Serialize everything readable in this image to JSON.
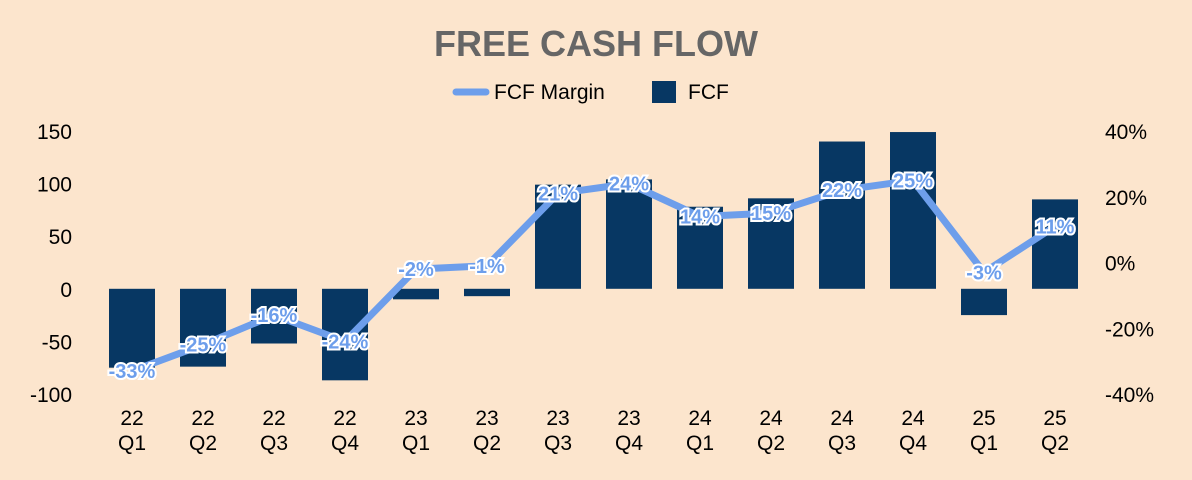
{
  "chart_data": {
    "type": "bar+line",
    "title": "FREE CASH FLOW",
    "categories": [
      [
        "22",
        "Q1"
      ],
      [
        "22",
        "Q2"
      ],
      [
        "22",
        "Q3"
      ],
      [
        "22",
        "Q4"
      ],
      [
        "23",
        "Q1"
      ],
      [
        "23",
        "Q2"
      ],
      [
        "23",
        "Q3"
      ],
      [
        "23",
        "Q4"
      ],
      [
        "24",
        "Q1"
      ],
      [
        "24",
        "Q2"
      ],
      [
        "24",
        "Q3"
      ],
      [
        "24",
        "Q4"
      ],
      [
        "25",
        "Q1"
      ],
      [
        "25",
        "Q2"
      ]
    ],
    "series": [
      {
        "name": "FCF",
        "type": "bar",
        "axis": "left",
        "color": "#073763",
        "values": [
          -75,
          -74,
          -52,
          -87,
          -10,
          -7,
          99,
          104,
          78,
          86,
          140,
          149,
          -25,
          85
        ]
      },
      {
        "name": "FCF Margin",
        "type": "line",
        "axis": "right",
        "color": "#6d9eeb",
        "values": [
          -33,
          -25,
          -16,
          -24,
          -2,
          -1,
          21,
          24,
          14,
          15,
          22,
          25,
          -3,
          11
        ],
        "labels": [
          "-33%",
          "-25%",
          "-16%",
          "-24%",
          "-2%",
          "-1%",
          "21%",
          "24%",
          "14%",
          "15%",
          "22%",
          "25%",
          "-3%",
          "11%"
        ]
      }
    ],
    "legend": [
      {
        "name": "FCF Margin",
        "kind": "line",
        "color": "#6d9eeb"
      },
      {
        "name": "FCF",
        "kind": "bar",
        "color": "#073763"
      }
    ],
    "legend_position": "top",
    "y_left": {
      "min": -100,
      "max": 150,
      "ticks": [
        150,
        100,
        50,
        0,
        -50,
        -100
      ],
      "tick_labels": [
        "150",
        "100",
        "50",
        "0",
        "-50",
        "-100"
      ]
    },
    "y_right": {
      "min": -40,
      "max": 40,
      "ticks": [
        40,
        20,
        0,
        -20,
        -40
      ],
      "tick_labels": [
        "40%",
        "20%",
        "0%",
        "-20%",
        "-40%"
      ]
    },
    "grid": false,
    "background": "#fce5cd"
  }
}
